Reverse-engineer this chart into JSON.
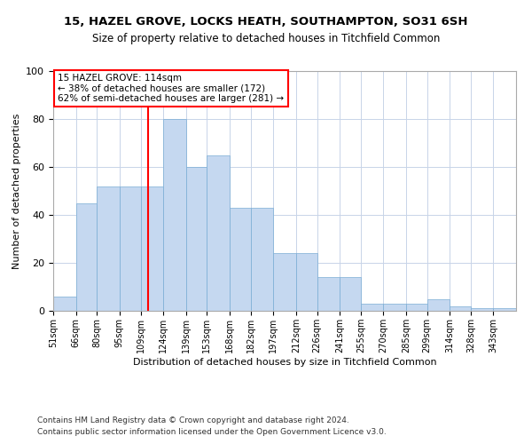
{
  "title1": "15, HAZEL GROVE, LOCKS HEATH, SOUTHAMPTON, SO31 6SH",
  "title2": "Size of property relative to detached houses in Titchfield Common",
  "xlabel": "Distribution of detached houses by size in Titchfield Common",
  "ylabel": "Number of detached properties",
  "footnote1": "Contains HM Land Registry data © Crown copyright and database right 2024.",
  "footnote2": "Contains public sector information licensed under the Open Government Licence v3.0.",
  "bin_labels": [
    "51sqm",
    "66sqm",
    "80sqm",
    "95sqm",
    "109sqm",
    "124sqm",
    "139sqm",
    "153sqm",
    "168sqm",
    "182sqm",
    "197sqm",
    "212sqm",
    "226sqm",
    "241sqm",
    "255sqm",
    "270sqm",
    "285sqm",
    "299sqm",
    "314sqm",
    "328sqm",
    "343sqm"
  ],
  "bar_values": [
    6,
    45,
    52,
    52,
    52,
    80,
    60,
    65,
    43,
    43,
    24,
    24,
    14,
    14,
    3,
    3,
    3,
    5,
    2,
    1,
    1
  ],
  "bar_color": "#c5d8f0",
  "bar_edge_color": "#7aadd4",
  "property_line_x": 114,
  "property_line_label": "15 HAZEL GROVE: 114sqm",
  "annotation_line1": "← 38% of detached houses are smaller (172)",
  "annotation_line2": "62% of semi-detached houses are larger (281) →",
  "vline_color": "red",
  "annotation_box_edge": "red",
  "ylim": [
    0,
    100
  ],
  "bin_edges": [
    51,
    66,
    80,
    95,
    109,
    124,
    139,
    153,
    168,
    182,
    197,
    212,
    226,
    241,
    255,
    270,
    285,
    299,
    314,
    328,
    343,
    358
  ]
}
